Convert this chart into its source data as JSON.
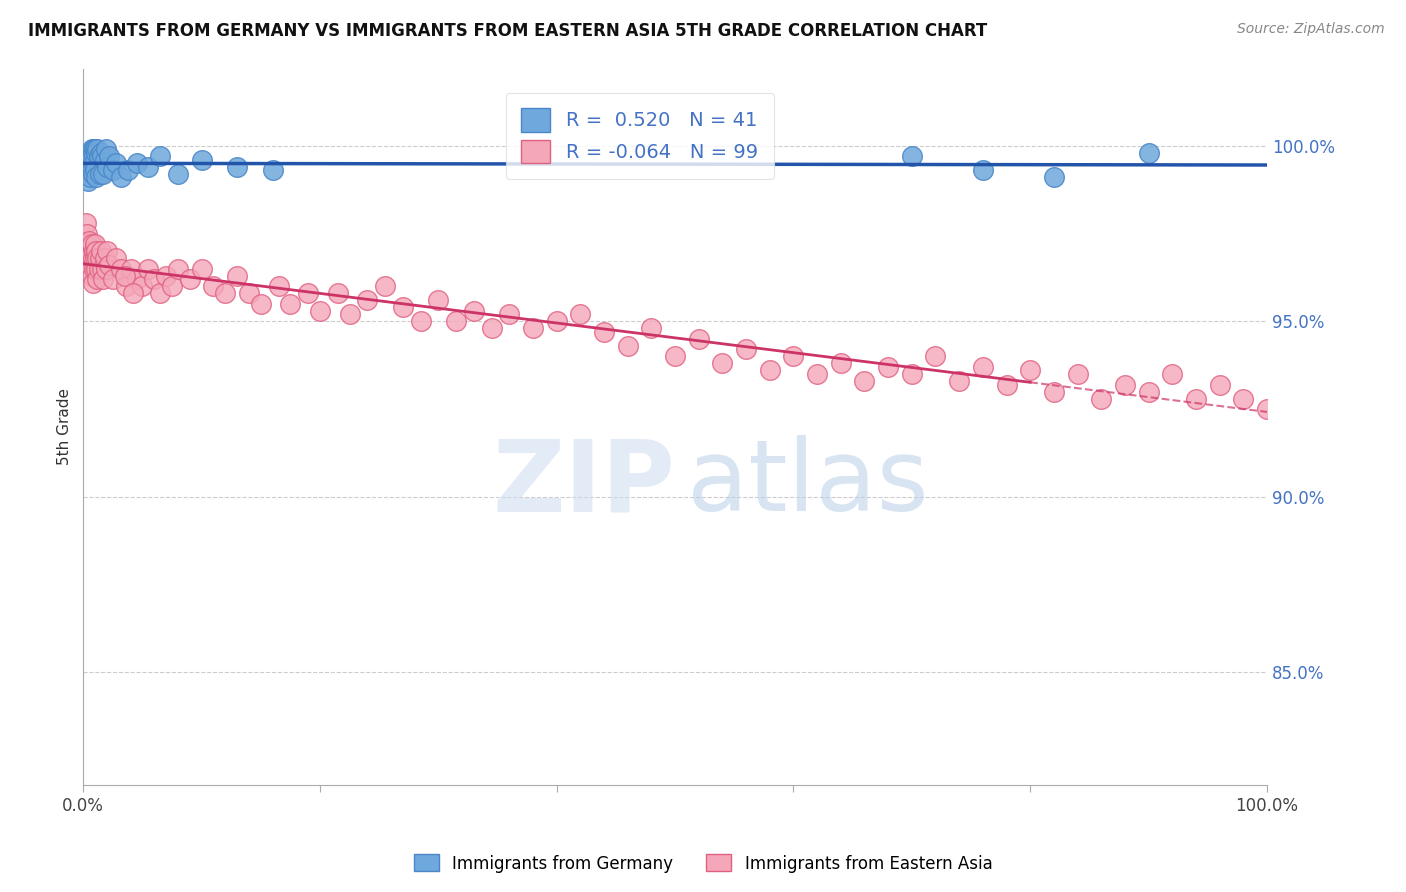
{
  "title": "IMMIGRANTS FROM GERMANY VS IMMIGRANTS FROM EASTERN ASIA 5TH GRADE CORRELATION CHART",
  "source": "Source: ZipAtlas.com",
  "ylabel": "5th Grade",
  "legend_label_blue": "Immigrants from Germany",
  "legend_label_pink": "Immigrants from Eastern Asia",
  "R_blue": 0.52,
  "N_blue": 41,
  "R_pink": -0.064,
  "N_pink": 99,
  "blue_color": "#6fa8dc",
  "blue_edge_color": "#4a86c8",
  "pink_color": "#f4a7b9",
  "pink_edge_color": "#e06080",
  "blue_line_color": "#2255aa",
  "pink_line_color": "#cc3366",
  "ytick_labels": [
    "85.0%",
    "90.0%",
    "95.0%",
    "100.0%"
  ],
  "ytick_values": [
    0.85,
    0.9,
    0.95,
    1.0
  ],
  "xlim": [
    0.0,
    1.0
  ],
  "ylim": [
    0.818,
    1.022
  ],
  "background_color": "#ffffff",
  "blue_scatter_x": [
    0.003,
    0.004,
    0.005,
    0.005,
    0.006,
    0.006,
    0.007,
    0.007,
    0.008,
    0.008,
    0.009,
    0.009,
    0.01,
    0.01,
    0.011,
    0.011,
    0.012,
    0.013,
    0.014,
    0.015,
    0.016,
    0.017,
    0.018,
    0.019,
    0.02,
    0.022,
    0.025,
    0.028,
    0.032,
    0.038,
    0.045,
    0.055,
    0.065,
    0.08,
    0.1,
    0.13,
    0.16,
    0.7,
    0.76,
    0.82,
    0.9
  ],
  "blue_scatter_y": [
    0.993,
    0.99,
    0.997,
    0.994,
    0.998,
    0.991,
    0.999,
    0.993,
    0.998,
    0.992,
    0.999,
    0.995,
    0.999,
    0.993,
    0.998,
    0.991,
    0.999,
    0.997,
    0.992,
    0.998,
    0.997,
    0.992,
    0.996,
    0.999,
    0.994,
    0.997,
    0.993,
    0.995,
    0.991,
    0.993,
    0.995,
    0.994,
    0.997,
    0.992,
    0.996,
    0.994,
    0.993,
    0.997,
    0.993,
    0.991,
    0.998
  ],
  "pink_scatter_x": [
    0.002,
    0.003,
    0.003,
    0.004,
    0.004,
    0.005,
    0.005,
    0.006,
    0.006,
    0.007,
    0.007,
    0.008,
    0.008,
    0.009,
    0.009,
    0.01,
    0.01,
    0.011,
    0.011,
    0.012,
    0.012,
    0.013,
    0.014,
    0.015,
    0.016,
    0.017,
    0.018,
    0.019,
    0.02,
    0.022,
    0.025,
    0.028,
    0.032,
    0.036,
    0.04,
    0.045,
    0.05,
    0.055,
    0.06,
    0.065,
    0.07,
    0.075,
    0.08,
    0.09,
    0.1,
    0.11,
    0.12,
    0.13,
    0.14,
    0.15,
    0.165,
    0.175,
    0.19,
    0.2,
    0.215,
    0.225,
    0.24,
    0.255,
    0.27,
    0.285,
    0.3,
    0.315,
    0.33,
    0.345,
    0.36,
    0.38,
    0.4,
    0.42,
    0.44,
    0.46,
    0.48,
    0.5,
    0.52,
    0.54,
    0.56,
    0.58,
    0.6,
    0.62,
    0.64,
    0.66,
    0.68,
    0.7,
    0.72,
    0.74,
    0.76,
    0.78,
    0.8,
    0.82,
    0.84,
    0.86,
    0.88,
    0.9,
    0.92,
    0.94,
    0.96,
    0.98,
    1.0,
    0.035,
    0.042
  ],
  "pink_scatter_y": [
    0.978,
    0.975,
    0.972,
    0.97,
    0.968,
    0.966,
    0.973,
    0.968,
    0.965,
    0.972,
    0.963,
    0.968,
    0.961,
    0.97,
    0.965,
    0.972,
    0.968,
    0.965,
    0.97,
    0.968,
    0.962,
    0.965,
    0.968,
    0.97,
    0.965,
    0.962,
    0.968,
    0.965,
    0.97,
    0.966,
    0.962,
    0.968,
    0.965,
    0.96,
    0.965,
    0.962,
    0.96,
    0.965,
    0.962,
    0.958,
    0.963,
    0.96,
    0.965,
    0.962,
    0.965,
    0.96,
    0.958,
    0.963,
    0.958,
    0.955,
    0.96,
    0.955,
    0.958,
    0.953,
    0.958,
    0.952,
    0.956,
    0.96,
    0.954,
    0.95,
    0.956,
    0.95,
    0.953,
    0.948,
    0.952,
    0.948,
    0.95,
    0.952,
    0.947,
    0.943,
    0.948,
    0.94,
    0.945,
    0.938,
    0.942,
    0.936,
    0.94,
    0.935,
    0.938,
    0.933,
    0.937,
    0.935,
    0.94,
    0.933,
    0.937,
    0.932,
    0.936,
    0.93,
    0.935,
    0.928,
    0.932,
    0.93,
    0.935,
    0.928,
    0.932,
    0.928,
    0.925,
    0.963,
    0.958
  ]
}
